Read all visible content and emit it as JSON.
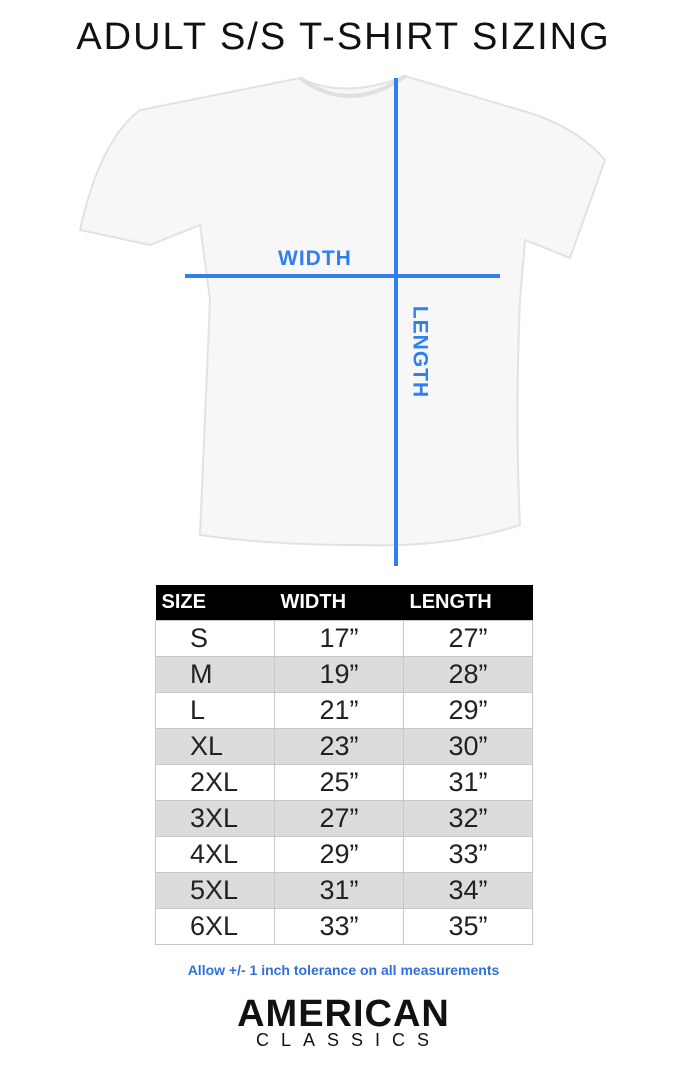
{
  "title": "ADULT S/S T-SHIRT SIZING",
  "diagram": {
    "width_label": "WIDTH",
    "length_label": "LENGTH",
    "line_color": "#2f7ff0"
  },
  "table": {
    "headers": [
      "SIZE",
      "WIDTH",
      "LENGTH"
    ],
    "rows": [
      [
        "S",
        "17”",
        "27”"
      ],
      [
        "M",
        "19”",
        "28”"
      ],
      [
        "L",
        "21”",
        "29”"
      ],
      [
        "XL",
        "23”",
        "30”"
      ],
      [
        "2XL",
        "25”",
        "31”"
      ],
      [
        "3XL",
        "27”",
        "32”"
      ],
      [
        "4XL",
        "29”",
        "33”"
      ],
      [
        "5XL",
        "31”",
        "34”"
      ],
      [
        "6XL",
        "33”",
        "35”"
      ]
    ]
  },
  "note": "Allow +/- 1 inch tolerance on all measurements",
  "logo": {
    "line1": "AMERICAN",
    "line2": "CLASSICS"
  }
}
